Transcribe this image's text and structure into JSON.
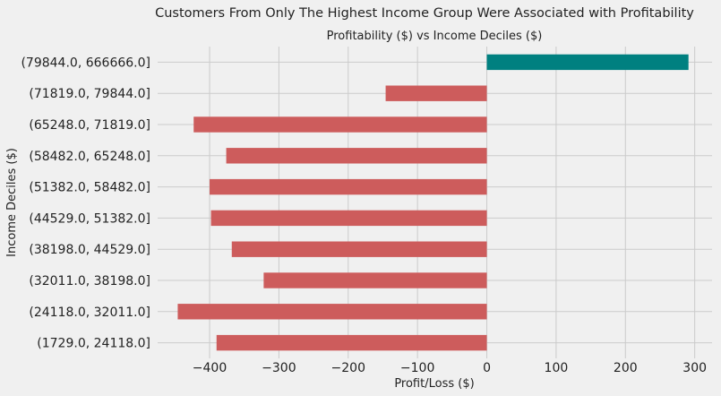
{
  "chart_data": {
    "type": "bar",
    "orientation": "horizontal",
    "suptitle": "Customers From Only The Highest Income Group Were Associated with Profitability",
    "title": "Profitability ($) vs Income Deciles ($)",
    "xlabel": "Profit/Loss ($)",
    "ylabel": "Income Deciles ($)",
    "xlim": [
      -475,
      325
    ],
    "xticks": [
      -400,
      -300,
      -200,
      -100,
      0,
      100,
      200,
      300
    ],
    "xtick_labels": [
      "−400",
      "−300",
      "−200",
      "−100",
      "0",
      "100",
      "200",
      "300"
    ],
    "grid": true,
    "legend": "none",
    "categories": [
      "(1729.0, 24118.0]",
      "(24118.0, 32011.0]",
      "(32011.0, 38198.0]",
      "(38198.0, 44529.0]",
      "(44529.0, 51382.0]",
      "(51382.0, 58482.0]",
      "(58482.0, 65248.0]",
      "(65248.0, 71819.0]",
      "(71819.0, 79844.0]",
      "(79844.0, 666666.0]"
    ],
    "values": [
      -390,
      -446,
      -322,
      -368,
      -398,
      -400,
      -376,
      -423,
      -146,
      291
    ],
    "colors": {
      "negative": "#cd5c5c",
      "positive": "#008080"
    }
  }
}
